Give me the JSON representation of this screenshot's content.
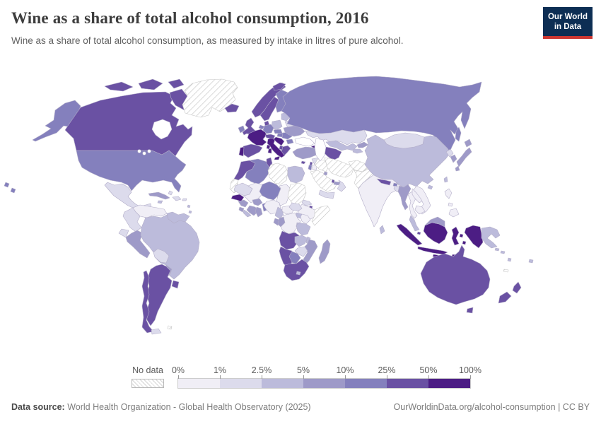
{
  "header": {
    "title": "Wine as a share of total alcohol consumption, 2016",
    "subtitle": "Wine as a share of total alcohol consumption, as measured by intake in litres of pure alcohol.",
    "logo": {
      "line1": "Our World",
      "line2": "in Data",
      "bg_color": "#0d2e54",
      "stripe_color": "#cc3732"
    }
  },
  "legend": {
    "no_data_label": "No data",
    "tick_labels": [
      "0%",
      "1%",
      "2.5%",
      "5%",
      "10%",
      "25%",
      "50%",
      "100%"
    ]
  },
  "footer": {
    "source_label": "Data source:",
    "source_text": " World Health Organization - Global Health Observatory (2025)",
    "credit": "OurWorldinData.org/alcohol-consumption | CC BY"
  },
  "chart_data": {
    "type": "choropleth_map",
    "title": "Wine as a share of total alcohol consumption, 2016",
    "unit": "% of total alcohol consumption (litres of pure alcohol)",
    "year": 2016,
    "legend_position": "bottom",
    "legend_bins": [
      {
        "key": "b1",
        "range": "0-1%",
        "color": "#f0eef6"
      },
      {
        "key": "b2",
        "range": "1-2.5%",
        "color": "#dcdbec"
      },
      {
        "key": "b3",
        "range": "2.5-5%",
        "color": "#bcbbdb"
      },
      {
        "key": "b4",
        "range": "5-10%",
        "color": "#9e9ac8"
      },
      {
        "key": "b5",
        "range": "10-25%",
        "color": "#8480bd"
      },
      {
        "key": "b6",
        "range": "25-50%",
        "color": "#6a51a3"
      },
      {
        "key": "b7",
        "range": "50-100%",
        "color": "#4c1d84"
      },
      {
        "key": "nodata",
        "range": "No data",
        "color": "hatch"
      }
    ],
    "countries": {
      "alaska": "b5",
      "canada": "b6",
      "arctic-islands-1": "b6",
      "arctic-islands-2": "b6",
      "arctic-islands-3": "b6",
      "baffin-island": "b6",
      "greenland": "nodata",
      "iceland": "b6",
      "usa": "b5",
      "hawaii": "b5",
      "mexico": "b2",
      "guatemala": "b2",
      "honduras-nicaragua": "b1",
      "costa-rica": "b3",
      "panama": "b4",
      "cuba": "b4",
      "hispaniola": "b2",
      "jamaica": "b3",
      "puerto-rico": "b2",
      "bahamas": "b2",
      "lesser-antilles": "b3",
      "venezuela": "b1",
      "colombia": "b2",
      "guyanas": "b3",
      "ecuador": "b2",
      "peru": "b4",
      "brazil": "b3",
      "bolivia": "b2",
      "paraguay": "b4",
      "uruguay": "b6",
      "argentina": "b6",
      "chile": "b6",
      "tierra-del-fuego": "b2",
      "falkland-islands": "nodata",
      "ireland": "b5",
      "uk": "b6",
      "norway": "b6",
      "svalbard": "b6",
      "sweden": "b6",
      "finland": "b5",
      "denmark": "b6",
      "baltics": "b3",
      "belarus": "b2",
      "poland": "b3",
      "germany": "b5",
      "benelux": "b5",
      "france": "b7",
      "spain": "b6",
      "portugal": "b7",
      "italy": "b7",
      "sicily": "b7",
      "sardinia": "b7",
      "corsica": "b7",
      "switzerland-austria": "b6",
      "czech-slovakia": "b5",
      "hungary": "b5",
      "romania": "b5",
      "balkans": "b7",
      "greece": "b6",
      "bulgaria": "b5",
      "albania": "b6",
      "ukraine": "b4",
      "russia": "b5",
      "sakhalin": "b5",
      "kazakhstan": "b2",
      "uzbekistan": "b3",
      "turkmenistan": "b6",
      "kyrgyzstan": "b4",
      "tajikistan": "b3",
      "georgia": "b7",
      "armenia": "b4",
      "azerbaijan": "b3",
      "turkey": "b4",
      "cyprus": "b6",
      "syria": "b2",
      "lebanon": "b6",
      "israel": "b5",
      "jordan": "b1",
      "iraq": "nodata",
      "saudi-arabia": "nodata",
      "yemen": "b2",
      "oman": "b2",
      "uae": "b4",
      "qatar": "b6",
      "kuwait": "b4",
      "iran": "nodata",
      "afghanistan": "nodata",
      "pakistan": "nodata",
      "india": "b1",
      "nepal": "b6",
      "bhutan": "b5",
      "bangladesh": "b2",
      "sri-lanka": "b3",
      "myanmar": "b4",
      "thailand": "b1",
      "laos": "b1",
      "vietnam": "b1",
      "cambodia": "b1",
      "malaysia-peninsula": "b3",
      "singapore": "b6",
      "sumatra": "b7",
      "java": "b7",
      "kalimantan": "b7",
      "malaysia-borneo": "b4",
      "sulawesi": "b7",
      "lesser-sunda": "b7",
      "moluccas": "b7",
      "west-papua": "b7",
      "papua-new-guinea": "b3",
      "philippines-luzon": "b1",
      "philippines-visayas": "b1",
      "mindanao": "b1",
      "taiwan": "b3",
      "hainan": "b3",
      "north-korea": "b2",
      "south-korea": "b4",
      "japan-hokkaido": "b4",
      "japan-honshu": "b4",
      "japan-kyushu": "b4",
      "china": "b3",
      "mongolia": "b2",
      "morocco": "b6",
      "western-sahara": "nodata",
      "algeria": "b5",
      "tunisia": "b6",
      "libya": "nodata",
      "egypt": "b3",
      "mauritania": "b2",
      "mali": "b1",
      "niger": "b5",
      "chad": "b1",
      "sudan": "nodata",
      "eritrea": "b2",
      "djibouti": "b6",
      "ethiopia": "b1",
      "somalia": "nodata",
      "senegal": "b7",
      "guinea": "b4",
      "sierra-leone": "b4",
      "liberia": "b3",
      "ivory-coast": "b4",
      "ghana": "b4",
      "burkina-faso": "b4",
      "togo-benin": "b5",
      "nigeria": "b1",
      "cameroon": "b3",
      "central-african-republic": "b1",
      "south-sudan": "b2",
      "uganda": "b3",
      "kenya": "b1",
      "drc": "b1",
      "gabon": "b4",
      "congo": "b4",
      "rwanda-burundi": "b3",
      "tanzania": "b3",
      "angola": "b6",
      "zambia": "b3",
      "malawi": "b3",
      "mozambique": "b4",
      "zimbabwe": "b2",
      "botswana": "b5",
      "namibia": "b6",
      "south-africa": "b6",
      "lesotho": "b3",
      "madagascar": "b4",
      "australia": "b6",
      "tasmania": "b6",
      "new-zealand-north": "b6",
      "new-zealand-south": "b6",
      "fiji": "b3",
      "vanuatu": "b3",
      "solomon-islands": "b3",
      "new-caledonia": "nodata"
    }
  }
}
